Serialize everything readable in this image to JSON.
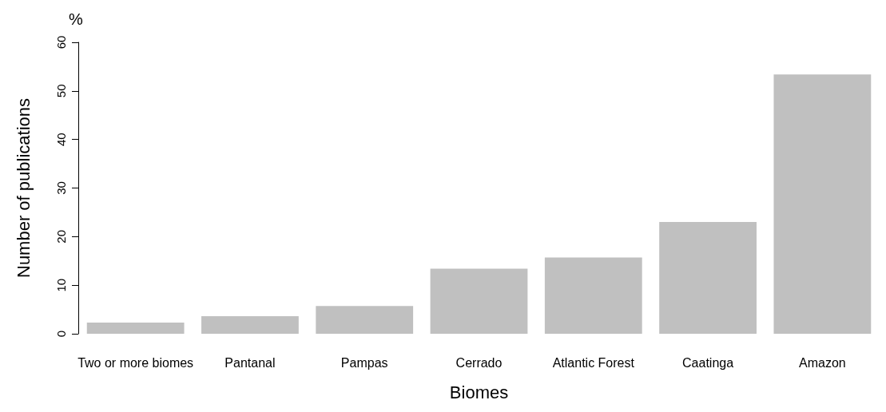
{
  "chart_data": {
    "type": "bar",
    "xlabel": "Biomes",
    "ylabel": "Number of publications",
    "annotations": [
      "%"
    ],
    "categories": [
      "Two or more biomes",
      "Pantanal",
      "Pampas",
      "Cerrado",
      "Atlantic Forest",
      "Caatinga",
      "Amazon"
    ],
    "values": [
      2.3,
      3.6,
      5.7,
      13.4,
      15.7,
      23,
      53.4
    ],
    "color": "#c0c0c0",
    "ylim": [
      0,
      60
    ],
    "yticks": [
      0,
      10,
      20,
      30,
      40,
      50,
      60
    ],
    "grid": false
  }
}
